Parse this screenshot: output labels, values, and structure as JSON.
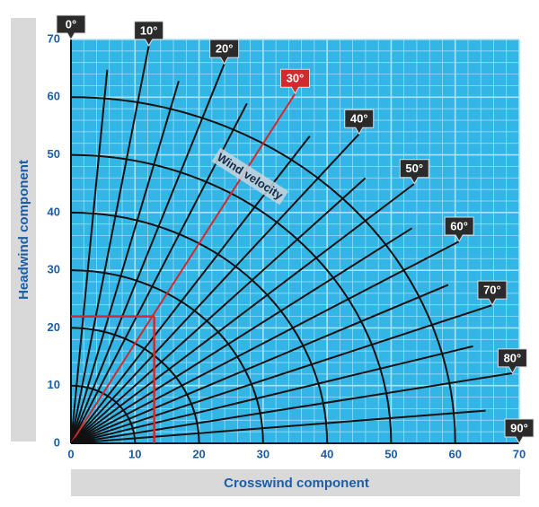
{
  "chart_data": {
    "type": "crosswind",
    "xlabel": "Crosswind component",
    "ylabel": "Headwind component",
    "xlim": [
      0,
      70
    ],
    "ylim": [
      0,
      70
    ],
    "xticks": [
      0,
      10,
      20,
      30,
      40,
      50,
      60,
      70
    ],
    "yticks": [
      0,
      10,
      20,
      30,
      40,
      50,
      60,
      70
    ],
    "minor_grid_step": 2,
    "grid_color": "#a9e3f7",
    "background": "#33b5e6",
    "line_color": "#111111",
    "angles": [
      {
        "value": 0,
        "label": "0°"
      },
      {
        "value": 10,
        "label": "10°"
      },
      {
        "value": 20,
        "label": "20°"
      },
      {
        "value": 30,
        "label": "30°"
      },
      {
        "value": 40,
        "label": "40°"
      },
      {
        "value": 50,
        "label": "50°"
      },
      {
        "value": 60,
        "label": "60°"
      },
      {
        "value": 70,
        "label": "70°"
      },
      {
        "value": 80,
        "label": "80°"
      },
      {
        "value": 90,
        "label": "90°"
      }
    ],
    "intermediate_angles": [
      5,
      15,
      25,
      35,
      45,
      55,
      65,
      75,
      85
    ],
    "labeled_line_length": 70,
    "intermediate_line_length": 65,
    "speed_arcs": [
      10,
      20,
      30,
      40,
      50,
      60
    ],
    "velocity_label": "Wind velocity",
    "highlight": {
      "angle": 30,
      "crosswind": 13,
      "headwind": 22,
      "color": "#d22a2e"
    }
  }
}
